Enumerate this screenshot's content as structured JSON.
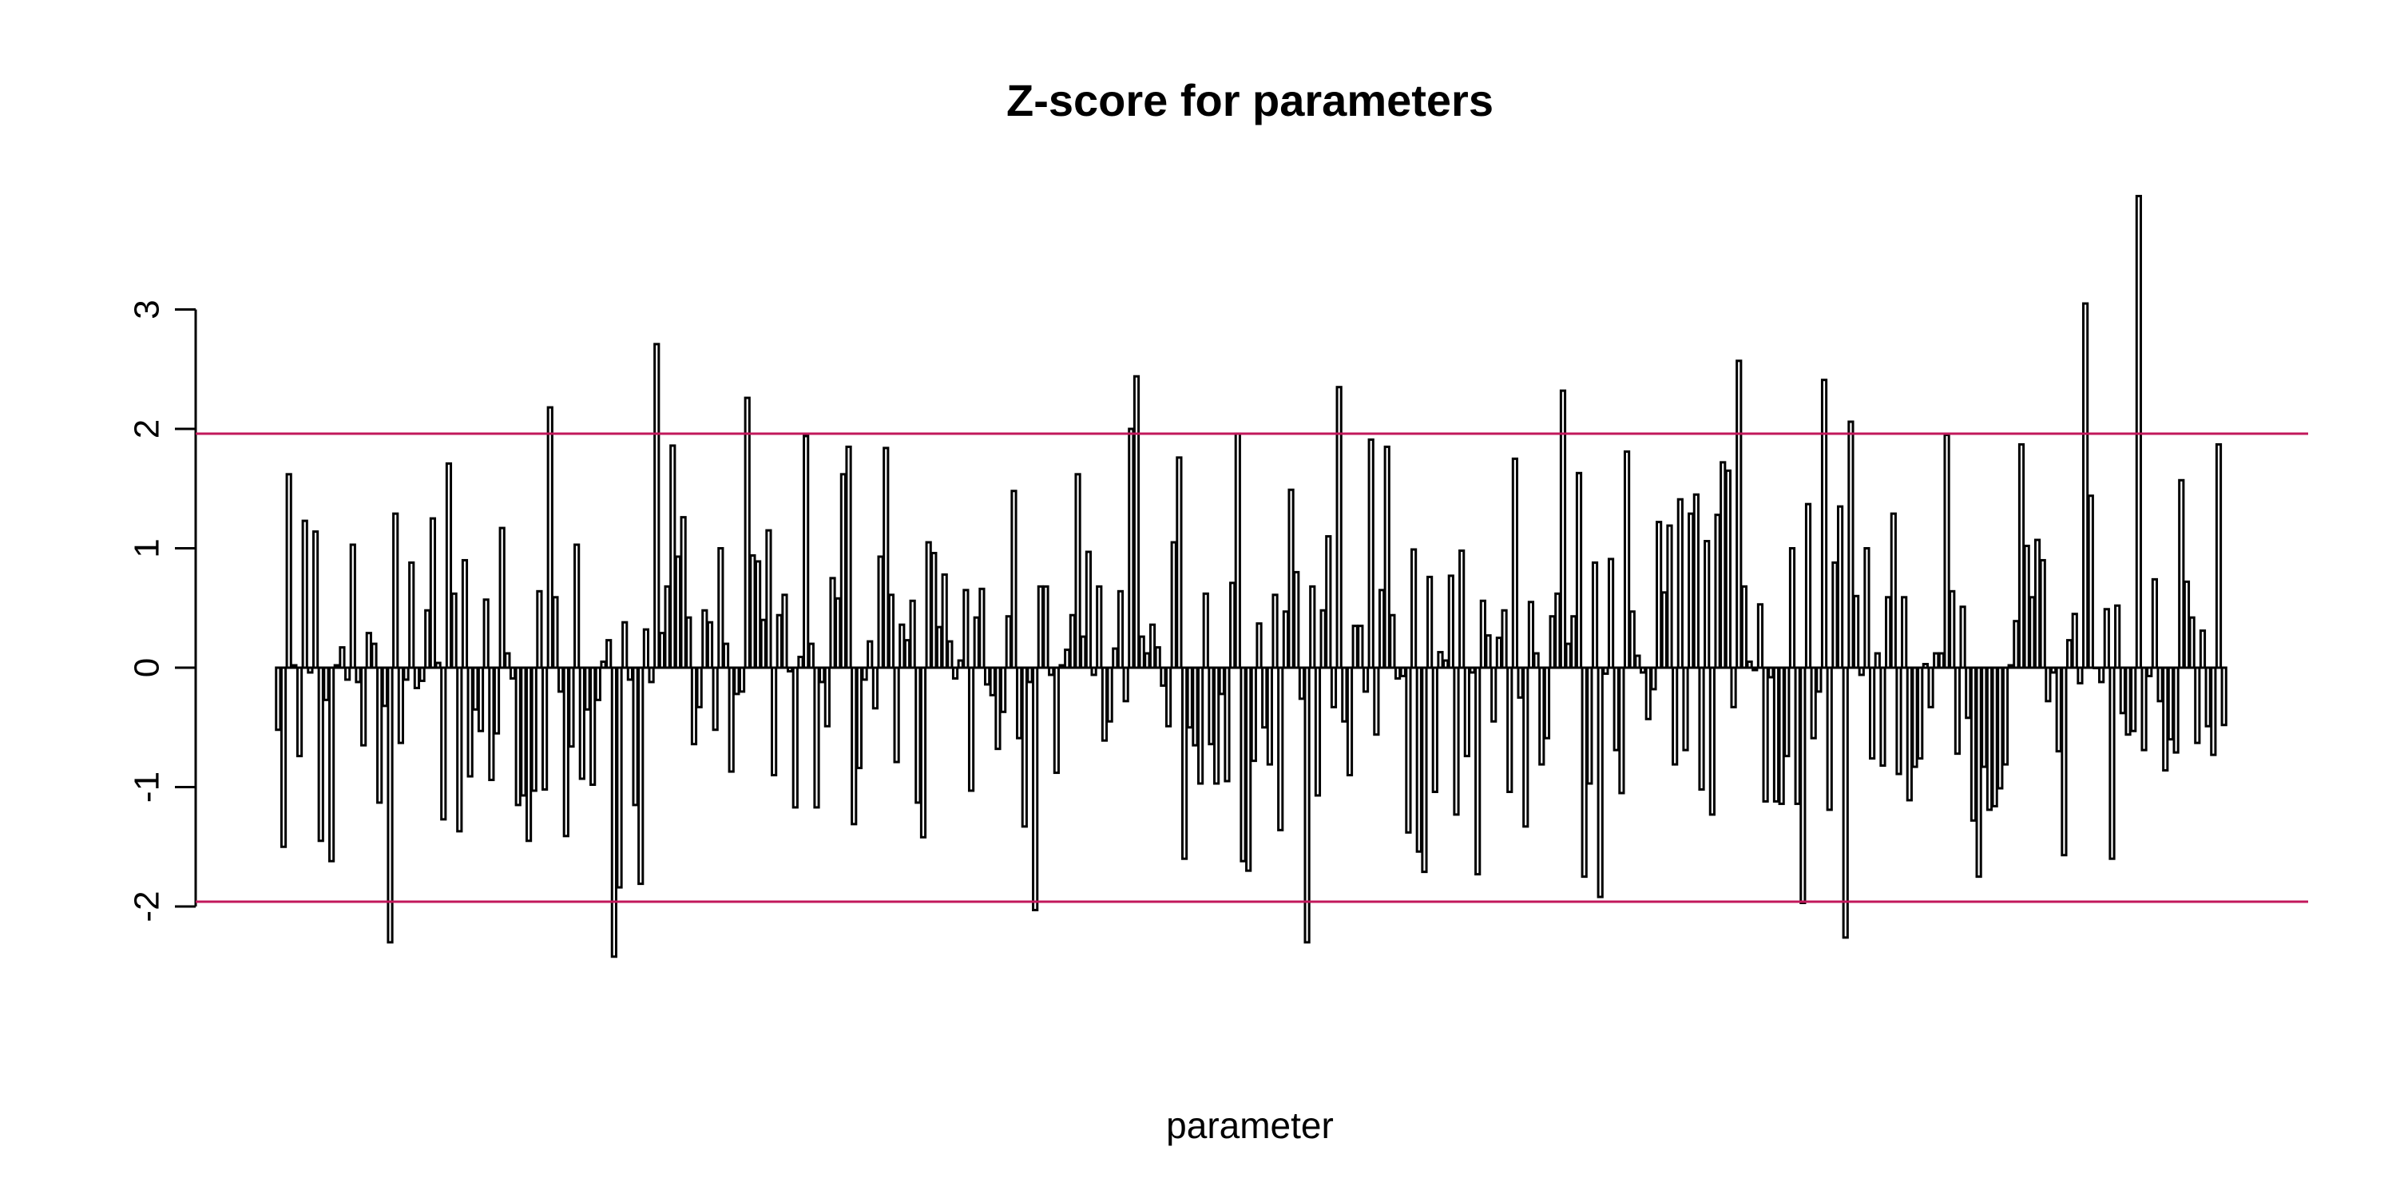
{
  "chart_data": {
    "type": "bar",
    "title": "Z-score for parameters",
    "xlabel": "parameter",
    "ylabel": "",
    "y_ticks": [
      3,
      2,
      1,
      0,
      -1,
      -2
    ],
    "y_tick_labels": [
      "3",
      "2",
      "1",
      "0",
      "-1",
      "-2"
    ],
    "ylim": [
      -2.6,
      4.1
    ],
    "reference_lines": [
      1.96,
      -1.96
    ],
    "reference_line_color": "#c2185b",
    "bar_color": "#ffffff",
    "bar_border_color": "#000000",
    "grid": false,
    "legend": "none",
    "values": [
      -0.52,
      -1.5,
      1.62,
      0.02,
      -0.74,
      1.23,
      -0.04,
      1.14,
      -1.45,
      -0.27,
      -1.62,
      0.02,
      0.17,
      -0.1,
      1.03,
      -0.12,
      -0.65,
      0.29,
      0.2,
      -1.13,
      -0.32,
      -2.3,
      1.29,
      -0.63,
      -0.1,
      0.88,
      -0.17,
      -0.11,
      0.48,
      1.25,
      0.04,
      -1.27,
      1.71,
      0.62,
      -1.37,
      0.9,
      -0.91,
      -0.35,
      -0.53,
      0.57,
      -0.94,
      -0.55,
      1.17,
      0.12,
      -0.09,
      -1.15,
      -1.07,
      -1.45,
      -1.03,
      0.64,
      -1.02,
      2.18,
      0.59,
      -0.2,
      -1.41,
      -0.66,
      1.03,
      -0.93,
      -0.35,
      -0.98,
      -0.27,
      0.05,
      0.23,
      -2.42,
      -1.84,
      0.38,
      -0.1,
      -1.15,
      -1.81,
      0.32,
      -0.12,
      2.71,
      0.29,
      0.68,
      1.86,
      0.93,
      1.26,
      0.42,
      -0.64,
      -0.33,
      0.48,
      0.38,
      -0.52,
      1.0,
      0.2,
      -0.87,
      -0.22,
      -0.2,
      2.26,
      0.94,
      0.89,
      0.4,
      1.15,
      -0.9,
      0.44,
      0.61,
      -0.03,
      -1.17,
      0.09,
      1.94,
      0.2,
      -1.17,
      -0.12,
      -0.49,
      0.75,
      0.58,
      1.62,
      1.85,
      -1.31,
      -0.84,
      -0.1,
      0.22,
      -0.34,
      0.93,
      1.84,
      0.61,
      -0.79,
      0.36,
      0.23,
      0.56,
      -1.13,
      -1.42,
      1.05,
      0.96,
      0.34,
      0.78,
      0.22,
      -0.09,
      0.06,
      0.65,
      -1.03,
      0.42,
      0.66,
      -0.14,
      -0.23,
      -0.68,
      -0.37,
      0.43,
      1.48,
      -0.59,
      -1.33,
      -0.12,
      -2.03,
      0.68,
      0.68,
      -0.06,
      -0.88,
      0.02,
      0.15,
      0.44,
      1.62,
      0.26,
      0.97,
      -0.06,
      0.68,
      -0.61,
      -0.45,
      0.16,
      0.64,
      -0.28,
      2.0,
      2.44,
      0.26,
      0.12,
      0.36,
      0.17,
      -0.15,
      -0.49,
      1.05,
      1.76,
      -1.6,
      -0.5,
      -0.65,
      -0.97,
      0.62,
      -0.64,
      -0.97,
      -0.22,
      -0.95,
      0.71,
      1.96,
      -1.62,
      -1.7,
      -0.78,
      0.37,
      -0.5,
      -0.81,
      0.61,
      -1.36,
      0.47,
      1.49,
      0.8,
      -0.26,
      -2.3,
      0.68,
      -1.07,
      0.48,
      1.1,
      -0.33,
      2.35,
      -0.45,
      -0.9,
      0.35,
      0.35,
      -0.2,
      1.91,
      -0.56,
      0.65,
      1.85,
      0.44,
      -0.09,
      -0.07,
      -1.38,
      0.99,
      -1.54,
      -1.71,
      0.76,
      -1.04,
      0.13,
      0.06,
      0.77,
      -1.23,
      0.98,
      -0.74,
      -0.04,
      -1.73,
      0.56,
      0.27,
      -0.45,
      0.25,
      0.48,
      -1.04,
      1.75,
      -0.25,
      -1.33,
      0.55,
      0.12,
      -0.81,
      -0.59,
      0.43,
      0.62,
      2.32,
      0.2,
      0.43,
      1.63,
      -1.75,
      -0.97,
      0.88,
      -1.92,
      -0.05,
      0.91,
      -0.69,
      -1.05,
      1.81,
      0.47,
      0.1,
      -0.04,
      -0.43,
      -0.18,
      1.22,
      0.63,
      1.19,
      -0.81,
      1.41,
      -0.69,
      1.29,
      1.45,
      -1.02,
      1.06,
      -1.23,
      1.28,
      1.72,
      1.65,
      -0.33,
      2.57,
      0.68,
      0.05,
      -0.02,
      0.53,
      -1.12,
      -0.08,
      -1.12,
      -1.14,
      -0.74,
      1.0,
      -1.14,
      -1.97,
      1.37,
      -0.59,
      -0.2,
      2.41,
      -1.19,
      0.88,
      1.35,
      -2.26,
      2.06,
      0.6,
      -0.06,
      1.0,
      -0.76,
      0.12,
      -0.82,
      0.59,
      1.29,
      -0.89,
      0.59,
      -1.11,
      -0.83,
      -0.76,
      0.03,
      -0.33,
      0.12,
      0.12,
      1.95,
      0.64,
      -0.72,
      0.51,
      -0.42,
      -1.28,
      -1.75,
      -0.83,
      -1.19,
      -1.16,
      -1.01,
      -0.81,
      0.02,
      0.39,
      1.87,
      1.02,
      0.59,
      1.07,
      0.9,
      -0.28,
      -0.04,
      -0.7,
      -1.57,
      0.23,
      0.45,
      -0.13,
      3.05,
      1.44,
      0.0,
      -0.12,
      0.49,
      -1.6,
      0.52,
      -0.38,
      -0.56,
      -0.53,
      3.95,
      -0.69,
      -0.07,
      0.74,
      -0.28,
      -0.86,
      -0.6,
      -0.71,
      1.57,
      0.72,
      0.42,
      -0.63,
      0.31,
      -0.49,
      -0.73,
      1.87,
      -0.48
    ]
  }
}
